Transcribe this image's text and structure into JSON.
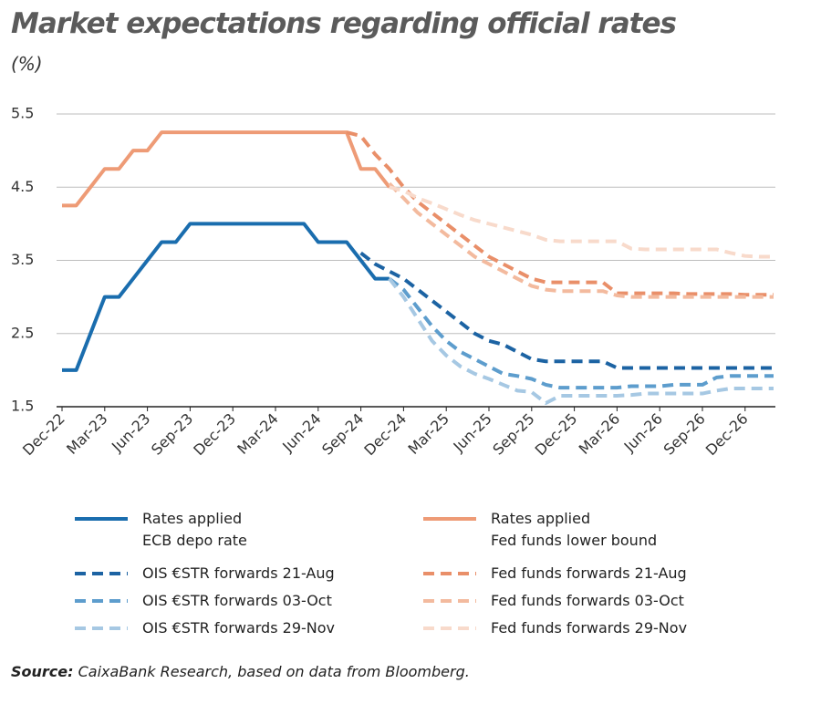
{
  "chart_data": {
    "type": "line",
    "title": "Market expectations regarding official rates",
    "subtitle": "(%)",
    "source_label": "Source:",
    "source": "CaixaBank Research, based on data from Bloomberg.",
    "categories": [
      "Dec-22",
      null,
      null,
      "Mar-23",
      null,
      null,
      "Jun-23",
      null,
      null,
      "Sep-23",
      null,
      null,
      "Dec-23",
      null,
      null,
      "Mar-24",
      null,
      null,
      "Jun-24",
      null,
      null,
      "Sep-24",
      null,
      null,
      "Dec-24",
      null,
      null,
      "Mar-25",
      null,
      null,
      "Jun-25",
      null,
      null,
      "Sep-25",
      null,
      null,
      "Dec-25",
      null,
      null,
      "Mar-26",
      null,
      null,
      "Jun-26",
      null,
      null,
      "Sep-26",
      null,
      null,
      "Dec-26",
      null,
      null
    ],
    "ylim": [
      1.5,
      5.5
    ],
    "yticks": [
      1.5,
      2.5,
      3.5,
      4.5,
      5.5
    ],
    "grid": true,
    "series": [
      {
        "name": "Rates applied\nECB depo rate",
        "color": "#1a6dae",
        "dashed": false,
        "values": [
          2,
          2,
          2.5,
          3,
          3,
          3.25,
          3.5,
          3.75,
          3.75,
          4,
          4,
          4,
          4,
          4,
          4,
          4,
          4,
          4,
          3.75,
          3.75,
          3.75,
          3.5,
          3.25,
          3.25,
          null,
          null,
          null,
          null,
          null,
          null,
          null,
          null,
          null,
          null,
          null,
          null,
          null,
          null,
          null,
          null,
          null,
          null,
          null,
          null,
          null,
          null,
          null,
          null,
          null,
          null,
          null
        ]
      },
      {
        "name": "Rates applied\nFed funds lower bound",
        "color": "#ee9b76",
        "dashed": false,
        "values": [
          4.25,
          4.25,
          4.5,
          4.75,
          4.75,
          5,
          5,
          5.25,
          5.25,
          5.25,
          5.25,
          5.25,
          5.25,
          5.25,
          5.25,
          5.25,
          5.25,
          5.25,
          5.25,
          5.25,
          5.25,
          4.75,
          4.75,
          4.5,
          null,
          null,
          null,
          null,
          null,
          null,
          null,
          null,
          null,
          null,
          null,
          null,
          null,
          null,
          null,
          null,
          null,
          null,
          null,
          null,
          null,
          null,
          null,
          null,
          null,
          null,
          null
        ]
      },
      {
        "name": "OIS €STR forwards 21-Aug",
        "color": "#1c63a3",
        "dashed": true,
        "values": [
          null,
          null,
          null,
          null,
          null,
          null,
          null,
          null,
          null,
          null,
          null,
          null,
          null,
          null,
          null,
          null,
          null,
          null,
          null,
          null,
          null,
          3.6,
          3.45,
          3.35,
          3.25,
          3.1,
          2.95,
          2.8,
          2.65,
          2.5,
          2.4,
          2.35,
          2.25,
          2.15,
          2.12,
          2.12,
          2.12,
          2.12,
          2.12,
          2.03,
          2.03,
          2.03,
          2.03,
          2.03,
          2.03,
          2.03,
          2.03,
          2.03,
          2.03,
          2.03,
          2.03
        ]
      },
      {
        "name": "Fed funds forwards 21-Aug",
        "color": "#e98f69",
        "dashed": true,
        "values": [
          null,
          null,
          null,
          null,
          null,
          null,
          null,
          null,
          null,
          null,
          null,
          null,
          null,
          null,
          null,
          null,
          null,
          null,
          null,
          null,
          5.25,
          5.2,
          4.95,
          4.75,
          4.5,
          4.3,
          4.15,
          4,
          3.85,
          3.7,
          3.55,
          3.45,
          3.35,
          3.25,
          3.2,
          3.2,
          3.2,
          3.2,
          3.2,
          3.05,
          3.05,
          3.05,
          3.05,
          3.05,
          3.04,
          3.04,
          3.04,
          3.04,
          3.03,
          3.03,
          3.03
        ]
      },
      {
        "name": "OIS €STR forwards 03-Oct",
        "color": "#5d9dcd",
        "dashed": true,
        "values": [
          null,
          null,
          null,
          null,
          null,
          null,
          null,
          null,
          null,
          null,
          null,
          null,
          null,
          null,
          null,
          null,
          null,
          null,
          null,
          null,
          null,
          null,
          null,
          3.25,
          3.1,
          2.85,
          2.6,
          2.4,
          2.25,
          2.15,
          2.05,
          1.95,
          1.92,
          1.88,
          1.8,
          1.76,
          1.76,
          1.76,
          1.76,
          1.76,
          1.78,
          1.78,
          1.78,
          1.8,
          1.8,
          1.8,
          1.9,
          1.92,
          1.92,
          1.92,
          1.92
        ]
      },
      {
        "name": "Fed funds forwards 03-Oct",
        "color": "#f3ba9e",
        "dashed": true,
        "values": [
          null,
          null,
          null,
          null,
          null,
          null,
          null,
          null,
          null,
          null,
          null,
          null,
          null,
          null,
          null,
          null,
          null,
          null,
          null,
          null,
          null,
          null,
          null,
          4.55,
          4.35,
          4.15,
          4,
          3.85,
          3.7,
          3.55,
          3.45,
          3.35,
          3.25,
          3.15,
          3.1,
          3.08,
          3.08,
          3.08,
          3.08,
          3.02,
          3,
          3,
          3,
          3,
          3,
          3,
          3,
          3,
          3,
          3,
          3
        ]
      },
      {
        "name": "OIS €STR forwards 29-Nov",
        "color": "#a6c8e3",
        "dashed": true,
        "values": [
          null,
          null,
          null,
          null,
          null,
          null,
          null,
          null,
          null,
          null,
          null,
          null,
          null,
          null,
          null,
          null,
          null,
          null,
          null,
          null,
          null,
          null,
          null,
          3.25,
          3,
          2.7,
          2.4,
          2.2,
          2.05,
          1.95,
          1.88,
          1.8,
          1.72,
          1.7,
          1.55,
          1.65,
          1.65,
          1.65,
          1.65,
          1.65,
          1.66,
          1.68,
          1.68,
          1.68,
          1.68,
          1.68,
          1.72,
          1.75,
          1.75,
          1.75,
          1.75
        ]
      },
      {
        "name": "Fed funds forwards 29-Nov",
        "color": "#f8dacb",
        "dashed": true,
        "values": [
          null,
          null,
          null,
          null,
          null,
          null,
          null,
          null,
          null,
          null,
          null,
          null,
          null,
          null,
          null,
          null,
          null,
          null,
          null,
          null,
          null,
          null,
          null,
          4.5,
          4.45,
          4.35,
          4.28,
          4.2,
          4.12,
          4.05,
          4,
          3.95,
          3.9,
          3.85,
          3.78,
          3.76,
          3.76,
          3.76,
          3.76,
          3.76,
          3.66,
          3.65,
          3.65,
          3.65,
          3.65,
          3.65,
          3.65,
          3.6,
          3.56,
          3.55,
          3.55
        ]
      }
    ]
  }
}
